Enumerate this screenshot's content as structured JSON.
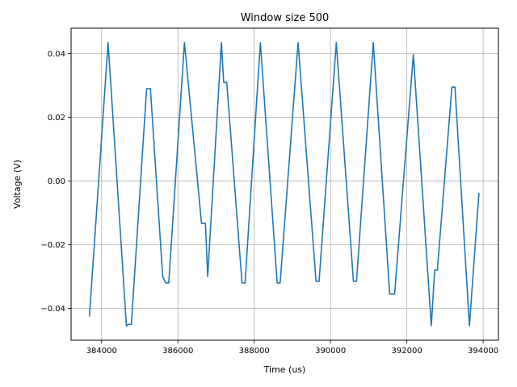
{
  "chart_data": {
    "type": "line",
    "title": "Window size 500",
    "xlabel": "Time (us)",
    "ylabel": "Voltage (V)",
    "xlim": [
      383200,
      394400
    ],
    "ylim": [
      -0.05,
      0.048
    ],
    "x_ticks": [
      384000,
      386000,
      388000,
      390000,
      392000,
      394000
    ],
    "x_tick_labels": [
      "384000",
      "386000",
      "388000",
      "390000",
      "392000",
      "394000"
    ],
    "y_ticks": [
      -0.04,
      -0.02,
      0.0,
      0.02,
      0.04
    ],
    "y_tick_labels": [
      "−0.04",
      "−0.02",
      "0.00",
      "0.02",
      "0.04"
    ],
    "grid": true,
    "line_color": "#1f77b4",
    "series": [
      {
        "x": [
          383680,
          384170,
          384650,
          384700,
          384780,
          385180,
          385280,
          385600,
          385680,
          385760,
          386170,
          386620,
          386720,
          386780,
          387140,
          387200,
          387280,
          387680,
          387760,
          388160,
          388600,
          388680,
          389150,
          389620,
          389700,
          390150,
          390600,
          390680,
          391120,
          391550,
          391680,
          392170,
          392640,
          392730,
          392800,
          393180,
          393260,
          393640,
          393890
        ],
        "y": [
          -0.0425,
          0.0435,
          -0.0455,
          -0.045,
          -0.045,
          0.029,
          0.029,
          -0.03,
          -0.032,
          -0.032,
          0.0435,
          -0.0133,
          -0.0133,
          -0.03,
          0.0435,
          0.031,
          0.031,
          -0.032,
          -0.032,
          0.0435,
          -0.032,
          -0.032,
          0.0435,
          -0.0315,
          -0.0315,
          0.0435,
          -0.0315,
          -0.0315,
          0.0435,
          -0.0355,
          -0.0355,
          0.0397,
          -0.0455,
          -0.028,
          -0.028,
          0.0295,
          0.0295,
          -0.0455,
          -0.0037
        ]
      }
    ]
  }
}
